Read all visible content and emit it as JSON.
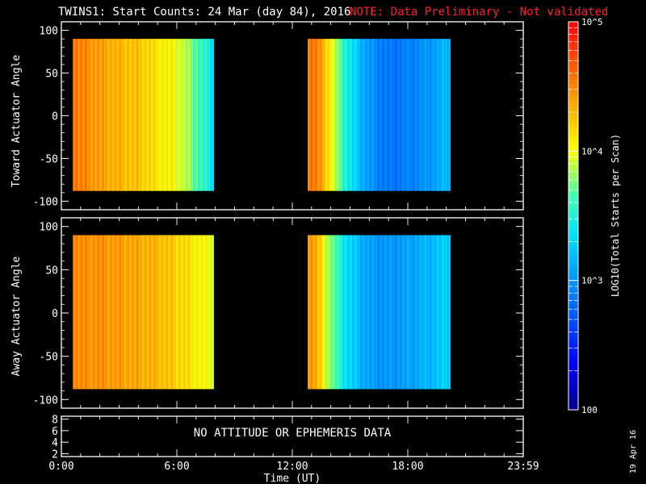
{
  "title": {
    "main": "TWINS1: Start Counts: 24 Mar (day  84), 2016",
    "note": "NOTE: Data Preliminary - Not validated",
    "note_color": "#ff2020"
  },
  "stamp": "19 Apr 16",
  "colorbar": {
    "label": "LOG10(Total Starts per Scan)",
    "tick_labels": [
      "100",
      "10^3",
      "10^4",
      "10^5"
    ],
    "range": [
      100,
      100000
    ],
    "scale": "log"
  },
  "xaxis": {
    "label": "Time (UT)",
    "tick_labels": [
      "0:00",
      "6:00",
      "12:00",
      "18:00",
      "23:59"
    ],
    "range_hours": [
      0,
      24
    ]
  },
  "chart_data": [
    {
      "type": "heatmap",
      "ylabel": "Toward Actuator Angle",
      "ylim": [
        -110,
        110
      ],
      "yticks": [
        100,
        50,
        0,
        -50,
        -100
      ],
      "data_y_range": [
        -88,
        90
      ],
      "segments": [
        {
          "x_start": 0.6,
          "x_end": 7.9,
          "log_counts_by_time": [
            {
              "x": 0.6,
              "v": 4.6
            },
            {
              "x": 1.0,
              "v": 4.5
            },
            {
              "x": 2.0,
              "v": 4.4
            },
            {
              "x": 3.0,
              "v": 4.3
            },
            {
              "x": 4.0,
              "v": 4.25
            },
            {
              "x": 5.0,
              "v": 4.1
            },
            {
              "x": 6.0,
              "v": 4.0
            },
            {
              "x": 6.8,
              "v": 3.75
            },
            {
              "x": 7.5,
              "v": 3.5
            },
            {
              "x": 7.9,
              "v": 3.4
            }
          ]
        },
        {
          "x_start": 12.8,
          "x_end": 20.2,
          "log_counts_by_time": [
            {
              "x": 12.8,
              "v": 4.6
            },
            {
              "x": 13.3,
              "v": 4.5
            },
            {
              "x": 13.8,
              "v": 4.2
            },
            {
              "x": 14.3,
              "v": 3.8
            },
            {
              "x": 15.0,
              "v": 3.4
            },
            {
              "x": 16.0,
              "v": 3.0
            },
            {
              "x": 17.0,
              "v": 2.85
            },
            {
              "x": 18.0,
              "v": 2.9
            },
            {
              "x": 19.0,
              "v": 3.0
            },
            {
              "x": 20.2,
              "v": 3.2
            }
          ]
        }
      ]
    },
    {
      "type": "heatmap",
      "ylabel": "Away Actuator Angle",
      "ylim": [
        -110,
        110
      ],
      "yticks": [
        100,
        50,
        0,
        -50,
        -100
      ],
      "data_y_range": [
        -88,
        90
      ],
      "segments": [
        {
          "x_start": 0.6,
          "x_end": 7.9,
          "log_counts_by_time": [
            {
              "x": 0.6,
              "v": 4.55
            },
            {
              "x": 1.0,
              "v": 4.45
            },
            {
              "x": 2.0,
              "v": 4.45
            },
            {
              "x": 3.0,
              "v": 4.4
            },
            {
              "x": 4.0,
              "v": 4.35
            },
            {
              "x": 5.0,
              "v": 4.3
            },
            {
              "x": 6.0,
              "v": 4.2
            },
            {
              "x": 6.8,
              "v": 4.1
            },
            {
              "x": 7.5,
              "v": 4.0
            },
            {
              "x": 7.9,
              "v": 4.0
            }
          ]
        },
        {
          "x_start": 12.8,
          "x_end": 20.2,
          "log_counts_by_time": [
            {
              "x": 12.8,
              "v": 4.5
            },
            {
              "x": 13.3,
              "v": 4.3
            },
            {
              "x": 13.8,
              "v": 3.9
            },
            {
              "x": 14.3,
              "v": 3.6
            },
            {
              "x": 15.0,
              "v": 3.3
            },
            {
              "x": 16.0,
              "v": 3.05
            },
            {
              "x": 17.0,
              "v": 3.0
            },
            {
              "x": 18.0,
              "v": 3.05
            },
            {
              "x": 19.0,
              "v": 3.15
            },
            {
              "x": 20.2,
              "v": 3.3
            }
          ]
        }
      ]
    },
    {
      "type": "line",
      "ylim": [
        1.5,
        8.5
      ],
      "yticks": [
        8,
        6,
        4,
        2
      ],
      "message": "NO ATTITUDE OR EPHEMERIS DATA"
    }
  ]
}
